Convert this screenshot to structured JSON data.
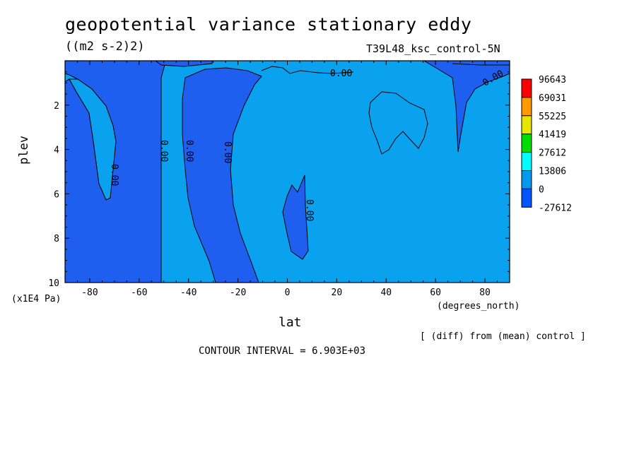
{
  "chart_data": {
    "type": "contour",
    "title": "geopotential variance stationary eddy",
    "units": "((m2 s-2)2)",
    "experiment": "T39L48_ksc_control-5N",
    "xlabel": "lat",
    "x_unit_label": "(degrees_north)",
    "ylabel": "plev",
    "y_unit_label": "(x1E4 Pa)",
    "xlim": [
      -90,
      90
    ],
    "ylim": [
      10,
      0
    ],
    "x_ticks": [
      "-80",
      "-60",
      "-40",
      "-20",
      "0",
      "20",
      "40",
      "60",
      "80"
    ],
    "y_ticks": [
      "2",
      "4",
      "6",
      "8",
      "10"
    ],
    "contour_interval_text": "CONTOUR INTERVAL = 6.903E+03",
    "note": "[ (diff) from (mean) control ]",
    "contour_labels": [
      "0.00",
      "0.00",
      "0.00",
      "0.00",
      "0.00",
      "0.00",
      "0.00"
    ],
    "colorbar": {
      "labels": [
        "96643",
        "69031",
        "55225",
        "41419",
        "27612",
        "13806",
        "0",
        "-27612"
      ],
      "colors": [
        "#ff0000",
        "#ff9900",
        "#e6e600",
        "#00dd00",
        "#00ffff",
        "#0099ee",
        "#0055ff"
      ]
    },
    "fill_colors": {
      "negative": "#1f5ff0",
      "positive_low": "#0aa2ee",
      "positive_mid": "#00c4ff"
    }
  }
}
